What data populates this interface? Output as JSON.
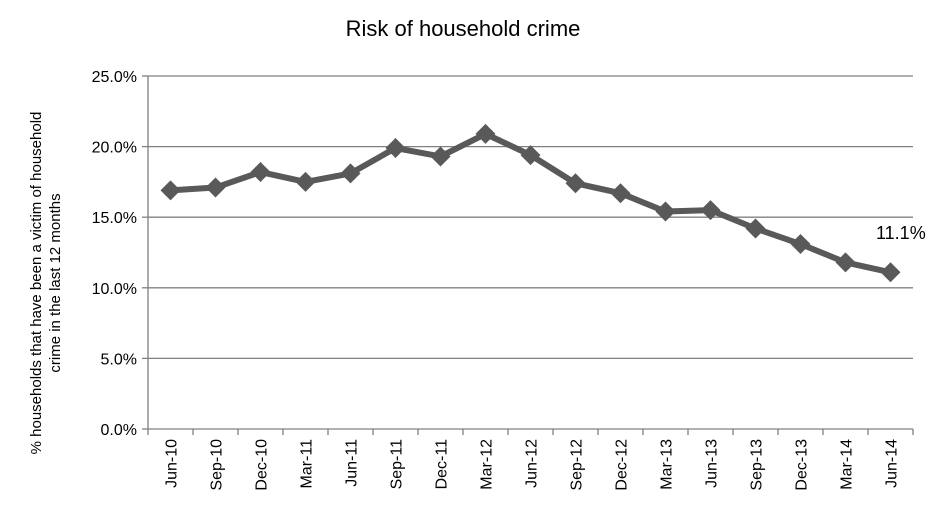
{
  "chart_data": {
    "type": "line",
    "title": "Risk of household crime",
    "ylabel_line1": "% households that have been a victim of household",
    "ylabel_line2": "crime in the last 12 months",
    "xlabel": "",
    "categories": [
      "Jun-10",
      "Sep-10",
      "Dec-10",
      "Mar-11",
      "Jun-11",
      "Sep-11",
      "Dec-11",
      "Mar-12",
      "Jun-12",
      "Sep-12",
      "Dec-12",
      "Mar-13",
      "Jun-13",
      "Sep-13",
      "Dec-13",
      "Mar-14",
      "Jun-14"
    ],
    "series": [
      {
        "values": [
          16.9,
          17.1,
          18.2,
          17.5,
          18.1,
          19.9,
          19.3,
          20.9,
          19.4,
          17.4,
          16.7,
          15.4,
          15.5,
          14.2,
          13.1,
          11.8,
          11.1
        ],
        "color": "#595959"
      }
    ],
    "yticks": [
      "0.0%",
      "5.0%",
      "10.0%",
      "15.0%",
      "20.0%",
      "25.0%"
    ],
    "ylim": [
      0,
      25
    ],
    "grid": true,
    "legend": "none",
    "annotation": "11.1%"
  }
}
